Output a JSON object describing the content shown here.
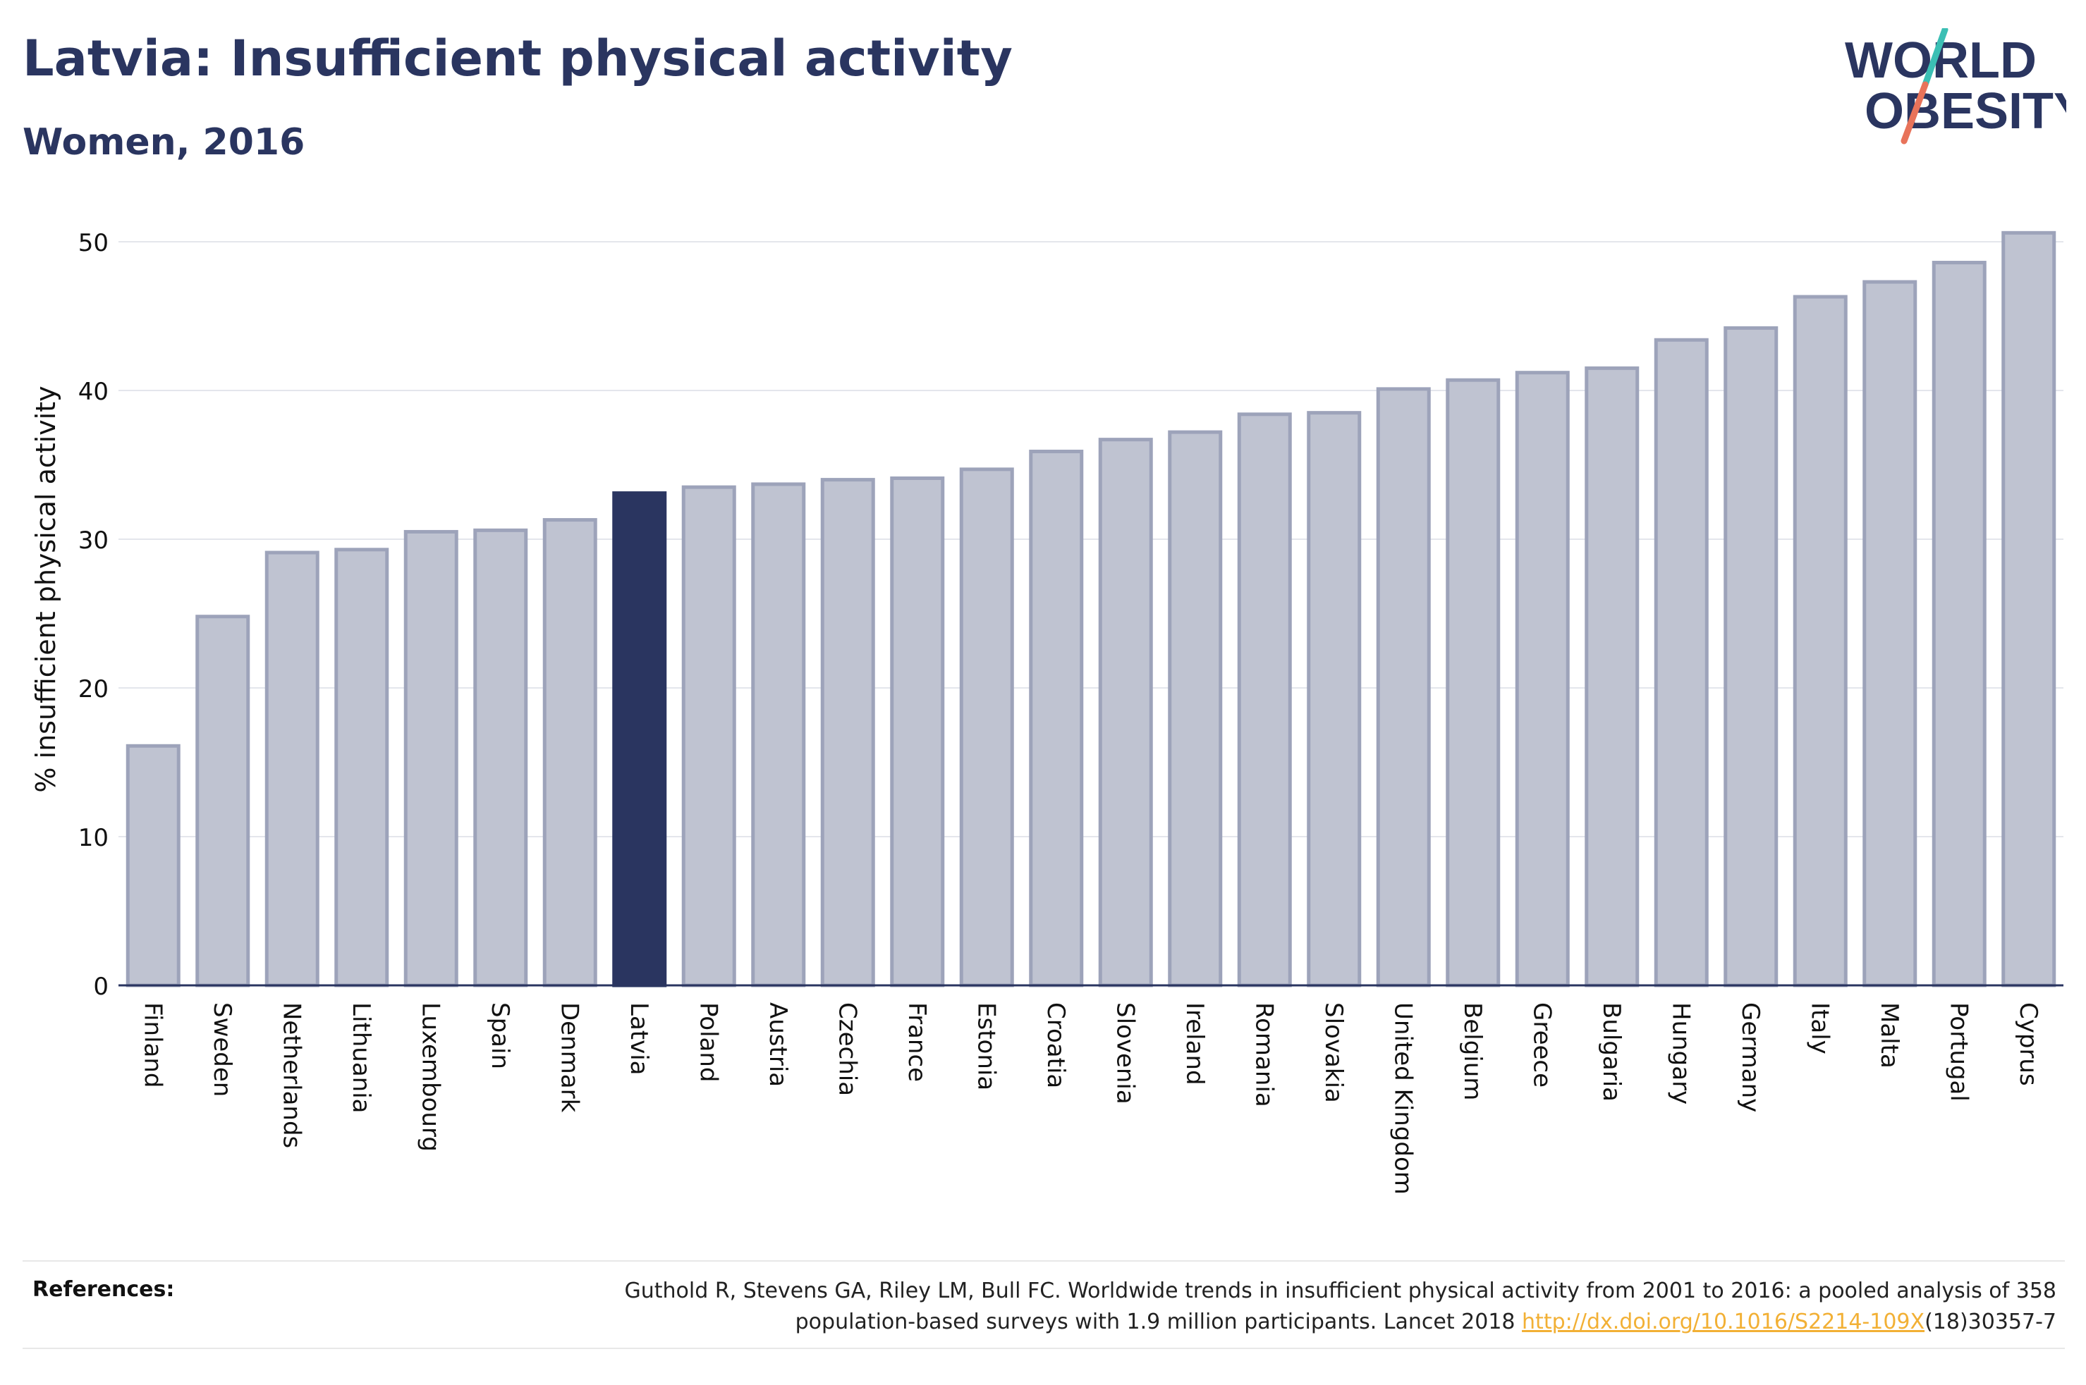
{
  "header": {
    "title": "Latvia: Insufficient physical activity",
    "subtitle": "Women, 2016"
  },
  "logo": {
    "line1": "WORLD",
    "line2": "OBESITY",
    "text_color": "#2a3560",
    "slash_top_color": "#3bbfb4",
    "slash_bottom_color": "#e8735a"
  },
  "colors": {
    "bar_fill": "#bfc3d1",
    "bar_stroke": "#9da3ba",
    "highlight_fill": "#2a3560",
    "axis": "#2a3560",
    "grid": "#e4e6ec"
  },
  "chart_data": {
    "type": "bar",
    "ylabel": "% insufficient physical activity",
    "xlabel": "",
    "ylim": [
      0,
      52.3
    ],
    "yticks": [
      0,
      10,
      20,
      30,
      40,
      50
    ],
    "grid": true,
    "highlight": "Latvia",
    "categories": [
      "Finland",
      "Sweden",
      "Netherlands",
      "Lithuania",
      "Luxembourg",
      "Spain",
      "Denmark",
      "Latvia",
      "Poland",
      "Austria",
      "Czechia",
      "France",
      "Estonia",
      "Croatia",
      "Slovenia",
      "Ireland",
      "Romania",
      "Slovakia",
      "United Kingdom",
      "Belgium",
      "Greece",
      "Bulgaria",
      "Hungary",
      "Germany",
      "Italy",
      "Malta",
      "Portugal",
      "Cyprus"
    ],
    "values": [
      16.1,
      24.8,
      29.1,
      29.3,
      30.5,
      30.6,
      31.3,
      33.1,
      33.5,
      33.7,
      34.0,
      34.1,
      34.7,
      35.9,
      36.7,
      37.2,
      38.4,
      38.5,
      40.1,
      40.7,
      41.2,
      41.5,
      43.4,
      44.2,
      46.3,
      47.3,
      48.6,
      50.6
    ]
  },
  "references": {
    "label": "References:",
    "line1": "Guthold R, Stevens GA, Riley LM, Bull FC. Worldwide trends in insufficient physical activity from 2001 to 2016: a pooled analysis of 358",
    "line2_pre": "population-based surveys with 1.9 million participants. Lancet 2018 ",
    "link_text": "http://dx.doi.org/10.1016/S2214-109X",
    "line2_post": "(18)30357-7"
  }
}
